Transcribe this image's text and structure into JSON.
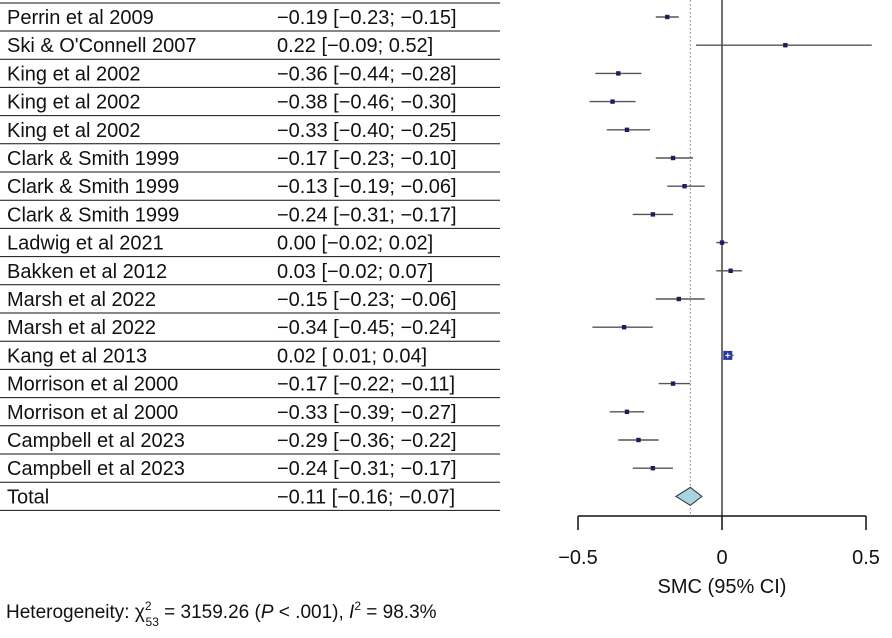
{
  "chart_data": {
    "type": "forest",
    "x_label": "SMC (95% CI)",
    "xlim": [
      -0.5,
      0.5
    ],
    "x_ticks": [
      -0.5,
      0,
      0.5
    ],
    "x_tick_labels": [
      "−0.5",
      "0",
      "0.5"
    ],
    "null_line": 0,
    "summary_line": -0.11,
    "studies": [
      {
        "label": "Perrin et al 2009",
        "ci_text": "−0.19 [−0.23; −0.15]",
        "est": -0.19,
        "lo": -0.23,
        "hi": -0.15
      },
      {
        "label": "Ski & O'Connell 2007",
        "ci_text": "0.22 [−0.09;  0.52]",
        "est": 0.22,
        "lo": -0.09,
        "hi": 0.52
      },
      {
        "label": "King et al 2002",
        "ci_text": "−0.36 [−0.44; −0.28]",
        "est": -0.36,
        "lo": -0.44,
        "hi": -0.28
      },
      {
        "label": "King et al 2002",
        "ci_text": "−0.38 [−0.46; −0.30]",
        "est": -0.38,
        "lo": -0.46,
        "hi": -0.3
      },
      {
        "label": "King et al 2002",
        "ci_text": "−0.33 [−0.40; −0.25]",
        "est": -0.33,
        "lo": -0.4,
        "hi": -0.25
      },
      {
        "label": "Clark & Smith 1999",
        "ci_text": "−0.17 [−0.23; −0.10]",
        "est": -0.17,
        "lo": -0.23,
        "hi": -0.1
      },
      {
        "label": "Clark & Smith 1999",
        "ci_text": "−0.13 [−0.19; −0.06]",
        "est": -0.13,
        "lo": -0.19,
        "hi": -0.06
      },
      {
        "label": "Clark & Smith 1999",
        "ci_text": "−0.24 [−0.31; −0.17]",
        "est": -0.24,
        "lo": -0.31,
        "hi": -0.17
      },
      {
        "label": "Ladwig et al 2021",
        "ci_text": "0.00 [−0.02;  0.02]",
        "est": 0.0,
        "lo": -0.02,
        "hi": 0.02
      },
      {
        "label": "Bakken et al 2012",
        "ci_text": "0.03 [−0.02;  0.07]",
        "est": 0.03,
        "lo": -0.02,
        "hi": 0.07
      },
      {
        "label": "Marsh et al 2022",
        "ci_text": "−0.15 [−0.23; −0.06]",
        "est": -0.15,
        "lo": -0.23,
        "hi": -0.06
      },
      {
        "label": "Marsh et al 2022",
        "ci_text": "−0.34 [−0.45; −0.24]",
        "est": -0.34,
        "lo": -0.45,
        "hi": -0.24
      },
      {
        "label": "Kang et al 2013",
        "ci_text": "0.02 [ 0.01;  0.04]",
        "est": 0.02,
        "lo": 0.01,
        "hi": 0.04
      },
      {
        "label": "Morrison et al 2000",
        "ci_text": "−0.17 [−0.22; −0.11]",
        "est": -0.17,
        "lo": -0.22,
        "hi": -0.11
      },
      {
        "label": "Morrison et al 2000",
        "ci_text": "−0.33 [−0.39; −0.27]",
        "est": -0.33,
        "lo": -0.39,
        "hi": -0.27
      },
      {
        "label": "Campbell et al 2023",
        "ci_text": "−0.29 [−0.36; −0.22]",
        "est": -0.29,
        "lo": -0.36,
        "hi": -0.22
      },
      {
        "label": "Campbell et al 2023",
        "ci_text": "−0.24 [−0.31; −0.17]",
        "est": -0.24,
        "lo": -0.31,
        "hi": -0.17
      }
    ],
    "total": {
      "label": "Total",
      "ci_text": "−0.11 [−0.16; −0.07]",
      "est": -0.11,
      "lo": -0.16,
      "hi": -0.07
    },
    "heterogeneity": {
      "prefix": "Heterogeneity: χ",
      "sup": "2",
      "sub": "53",
      "middle": " = 3159.26 (",
      "p_symbol": "P",
      "p_rest": " < .001), ",
      "i_symbol": "I",
      "i_sup": "2",
      "i_rest": " = 98.3%"
    }
  },
  "colors": {
    "text": "#111111",
    "marker": "#1a1f5e",
    "ci_line": "#555555",
    "summary_fill": "#a8d4e2",
    "summary_stroke": "#2d2d2d",
    "kang_fill": "#2438a8",
    "axis": "#111111",
    "reference_line": "#333333"
  }
}
